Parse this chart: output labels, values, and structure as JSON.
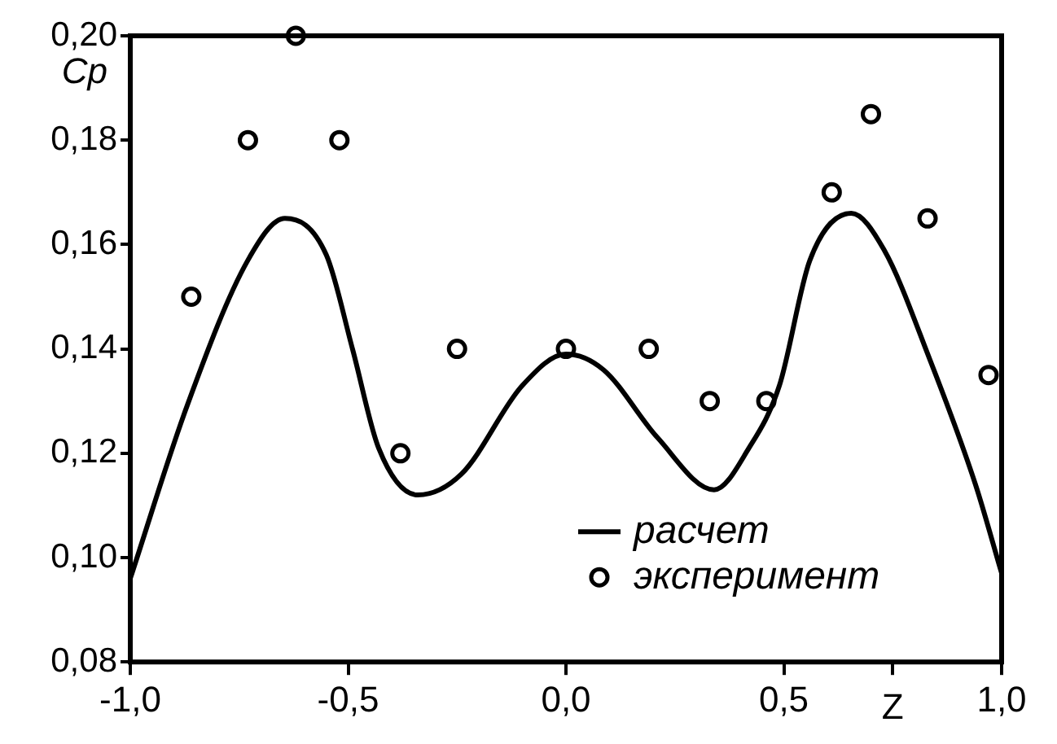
{
  "chart_data": {
    "type": "line",
    "xlabel": "Z",
    "ylabel": "Cp",
    "xlim": [
      -1,
      1
    ],
    "xticks": [
      {
        "value": -1,
        "label": "-1,0"
      },
      {
        "value": -0.5,
        "label": "-0,5"
      },
      {
        "value": 0,
        "label": "0,0"
      },
      {
        "value": 0.5,
        "label": "0,5"
      },
      {
        "value": 0.75,
        "label": null
      },
      {
        "value": 1,
        "label": "1,0"
      }
    ],
    "ylim": [
      0.08,
      0.2
    ],
    "yticks": [
      {
        "value": 0.08,
        "label": "0,08"
      },
      {
        "value": 0.1,
        "label": "0,10"
      },
      {
        "value": 0.12,
        "label": "0,12"
      },
      {
        "value": 0.14,
        "label": "0,14"
      },
      {
        "value": 0.16,
        "label": "0,16"
      },
      {
        "value": 0.18,
        "label": "0,18"
      },
      {
        "value": 0.2,
        "label": "0,20"
      }
    ],
    "grid": false,
    "legend": "bottom right",
    "series": [
      {
        "name": "расчет",
        "color": "#000000",
        "marker": "none",
        "line_style": "solid",
        "x": [
          -1,
          -0.87,
          -0.73,
          -0.645,
          -0.55,
          -0.49,
          -0.43,
          -0.34,
          -0.24,
          -0.1,
          0,
          0.086,
          0.21,
          0.34,
          0.42,
          0.49,
          0.56,
          0.655,
          0.73,
          0.835,
          0.94,
          1
        ],
        "values": [
          0.096,
          0.129,
          0.157,
          0.165,
          0.158,
          0.14,
          0.121,
          0.112,
          0.116,
          0.133,
          0.139,
          0.136,
          0.123,
          0.113,
          0.121,
          0.133,
          0.157,
          0.166,
          0.159,
          0.138,
          0.114,
          0.097
        ]
      },
      {
        "name": "эксперимент",
        "type": "scatter",
        "color": "#000000",
        "marker": "circle",
        "x": [
          -0.86,
          -0.73,
          -0.62,
          -0.52,
          -0.38,
          -0.25,
          0,
          0.19,
          0.33,
          0.46,
          0.61,
          0.7,
          0.83,
          0.97
        ],
        "values": [
          0.15,
          0.18,
          0.2,
          0.18,
          0.12,
          0.14,
          0.14,
          0.14,
          0.13,
          0.13,
          0.17,
          0.185,
          0.165,
          0.135
        ]
      }
    ]
  }
}
